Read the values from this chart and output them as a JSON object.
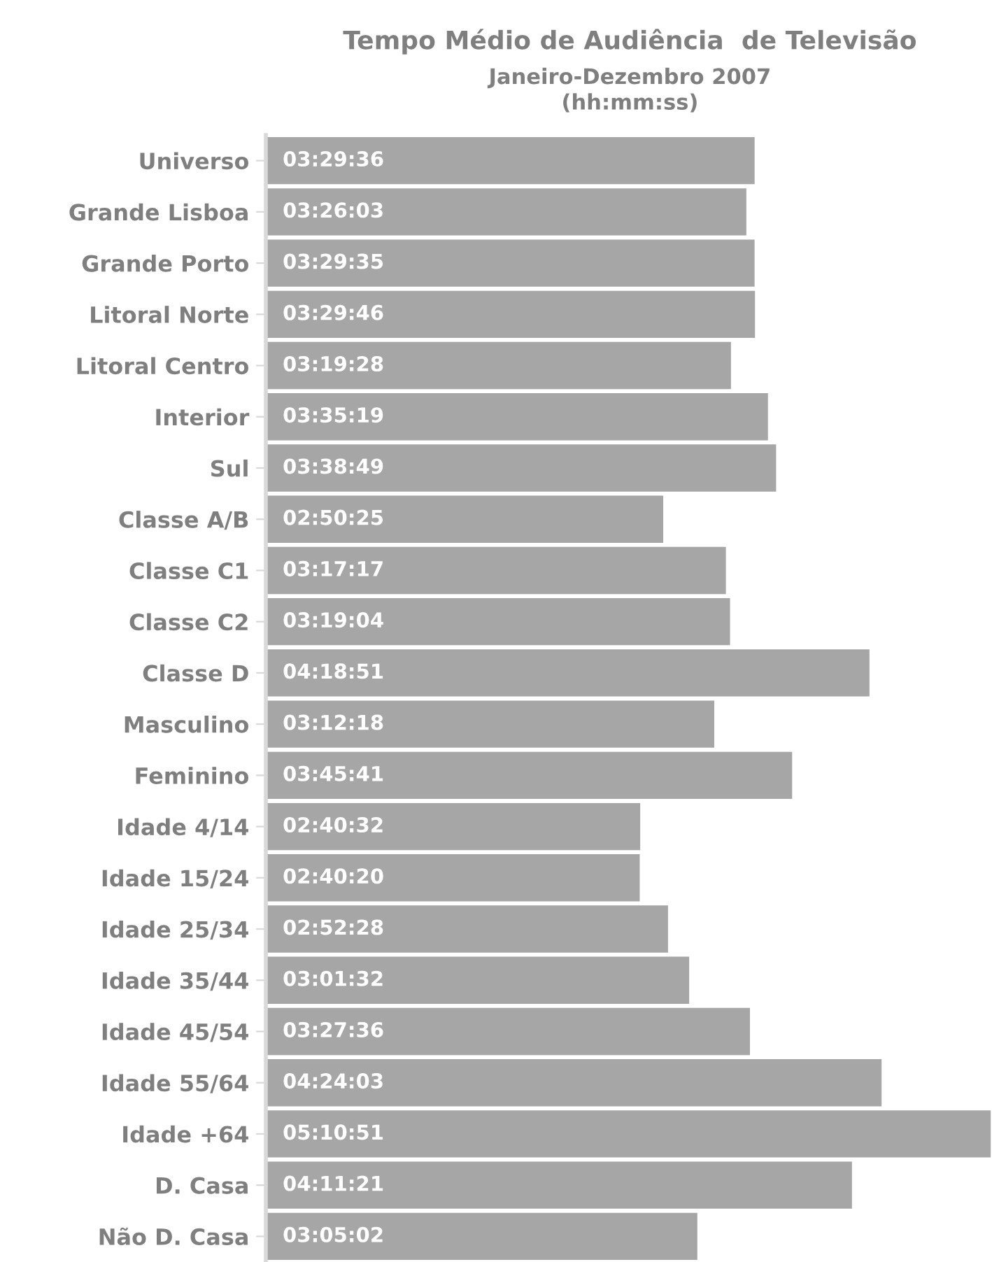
{
  "chart_data": {
    "type": "bar",
    "orientation": "horizontal",
    "title": "Tempo Médio de Audiência  de Televisão",
    "subtitle": "Janeiro-Dezembro 2007\n(hh:mm:ss)",
    "categories": [
      "Universo",
      "Grande Lisboa",
      "Grande Porto",
      "Litoral Norte",
      "Litoral Centro",
      "Interior",
      "Sul",
      "Classe A/B",
      "Classe C1",
      "Classe C2",
      "Classe D",
      "Masculino",
      "Feminino",
      "Idade 4/14",
      "Idade 15/24",
      "Idade 25/34",
      "Idade 35/44",
      "Idade 45/54",
      "Idade 55/64",
      "Idade +64",
      "D. Casa",
      "Não D. Casa"
    ],
    "values": [
      3.4933,
      3.4342,
      3.4931,
      3.4961,
      3.3244,
      3.5886,
      3.6469,
      2.8403,
      3.2881,
      3.3178,
      4.3142,
      3.205,
      3.7614,
      2.6756,
      2.6722,
      2.8744,
      3.0256,
      3.46,
      4.4008,
      5.1808,
      4.1892,
      3.0839
    ],
    "value_labels": [
      "03:29:36",
      "03:26:03",
      "03:29:35",
      "03:29:46",
      "03:19:28",
      "03:35:19",
      "03:38:49",
      "02:50:25",
      "03:17:17",
      "03:19:04",
      "04:18:51",
      "03:12:18",
      "03:45:41",
      "02:40:32",
      "02:40:20",
      "02:52:28",
      "03:01:32",
      "03:27:36",
      "04:24:03",
      "05:10:51",
      "04:11:21",
      "03:05:02"
    ],
    "color": "#a6a6a6",
    "xlim": [
      0,
      5.19
    ],
    "tick_labels": "y",
    "grid": false,
    "legend": false
  }
}
